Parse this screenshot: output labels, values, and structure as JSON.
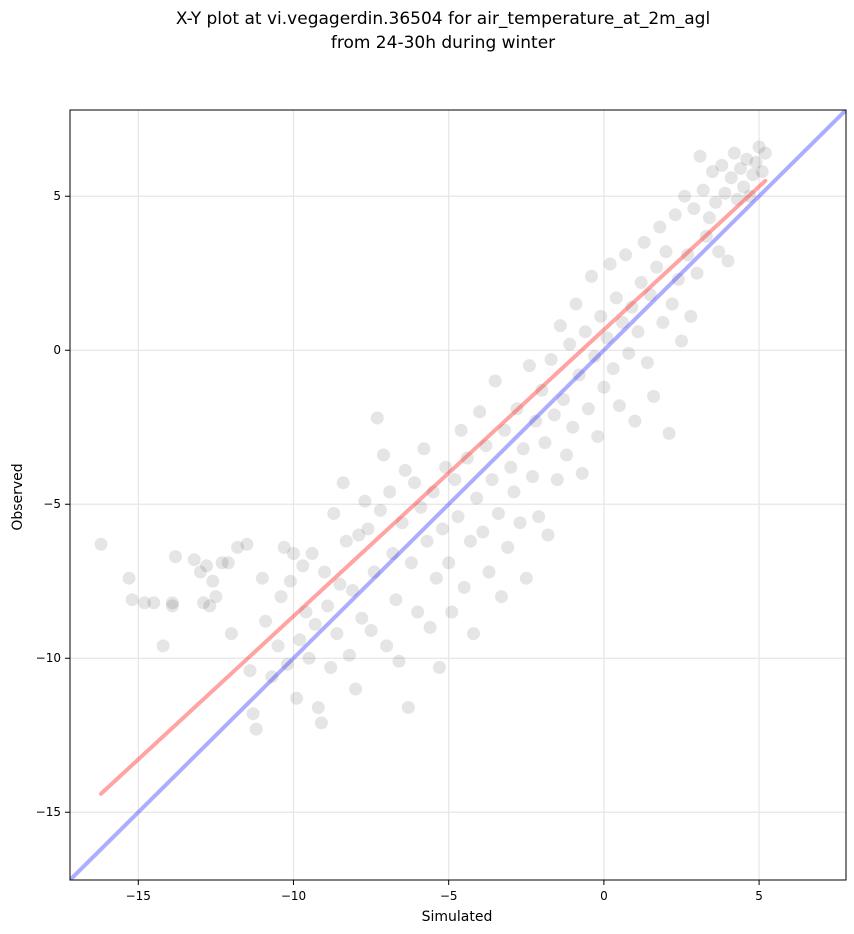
{
  "chart_data": {
    "type": "scatter",
    "title": "X-Y plot at vi.vegagerdin.36504 for air_temperature_at_2m_agl",
    "subtitle": "from 24-30h during winter",
    "xlabel": "Simulated",
    "ylabel": "Observed",
    "xlim": [
      -17.2,
      7.8
    ],
    "ylim": [
      -17.2,
      7.8
    ],
    "xticks": [
      -15,
      -10,
      -5,
      0,
      5
    ],
    "yticks": [
      -15,
      -10,
      -5,
      0,
      5
    ],
    "xtick_labels": [
      "−15",
      "−10",
      "−5",
      "0",
      "5"
    ],
    "ytick_labels": [
      "−15",
      "−10",
      "−5",
      "0",
      "5"
    ],
    "grid": true,
    "point_color": "#000000",
    "point_alpha": 0.1,
    "regression_line": {
      "color": "#ff3333",
      "alpha": 0.45,
      "x": [
        -16.2,
        5.2
      ],
      "y": [
        -14.4,
        5.5
      ]
    },
    "identity_line": {
      "color": "#3333ff",
      "alpha": 0.4,
      "x": [
        -17.2,
        7.8
      ],
      "y": [
        -17.2,
        7.8
      ]
    },
    "points": [
      [
        -16.2,
        -6.3
      ],
      [
        -15.3,
        -7.4
      ],
      [
        -15.2,
        -8.1
      ],
      [
        -14.8,
        -8.2
      ],
      [
        -14.5,
        -8.2
      ],
      [
        -14.2,
        -9.6
      ],
      [
        -13.9,
        -8.2
      ],
      [
        -13.9,
        -8.3
      ],
      [
        -13.8,
        -6.7
      ],
      [
        -13.2,
        -6.8
      ],
      [
        -13.0,
        -7.2
      ],
      [
        -12.9,
        -8.2
      ],
      [
        -12.8,
        -7.0
      ],
      [
        -12.7,
        -8.3
      ],
      [
        -12.6,
        -7.5
      ],
      [
        -12.5,
        -8.0
      ],
      [
        -12.3,
        -6.9
      ],
      [
        -12.1,
        -6.9
      ],
      [
        -12.0,
        -9.2
      ],
      [
        -11.8,
        -6.4
      ],
      [
        -11.5,
        -6.3
      ],
      [
        -11.4,
        -10.4
      ],
      [
        -11.3,
        -11.8
      ],
      [
        -11.2,
        -12.3
      ],
      [
        -11.0,
        -7.4
      ],
      [
        -10.9,
        -8.8
      ],
      [
        -10.7,
        -10.6
      ],
      [
        -10.5,
        -9.6
      ],
      [
        -10.4,
        -8.0
      ],
      [
        -10.3,
        -6.4
      ],
      [
        -10.2,
        -10.2
      ],
      [
        -10.1,
        -7.5
      ],
      [
        -10.0,
        -6.6
      ],
      [
        -9.9,
        -11.3
      ],
      [
        -9.8,
        -9.4
      ],
      [
        -9.7,
        -7.0
      ],
      [
        -9.6,
        -8.5
      ],
      [
        -9.5,
        -10.0
      ],
      [
        -9.4,
        -6.6
      ],
      [
        -9.3,
        -8.9
      ],
      [
        -9.2,
        -11.6
      ],
      [
        -9.1,
        -12.1
      ],
      [
        -9.0,
        -7.2
      ],
      [
        -8.9,
        -8.3
      ],
      [
        -8.8,
        -10.3
      ],
      [
        -8.7,
        -5.3
      ],
      [
        -8.6,
        -9.2
      ],
      [
        -8.5,
        -7.6
      ],
      [
        -8.4,
        -4.3
      ],
      [
        -8.3,
        -6.2
      ],
      [
        -8.2,
        -9.9
      ],
      [
        -8.1,
        -7.8
      ],
      [
        -8.0,
        -11.0
      ],
      [
        -7.9,
        -6.0
      ],
      [
        -7.8,
        -8.7
      ],
      [
        -7.7,
        -4.9
      ],
      [
        -7.6,
        -5.8
      ],
      [
        -7.5,
        -9.1
      ],
      [
        -7.4,
        -7.2
      ],
      [
        -7.3,
        -2.2
      ],
      [
        -7.2,
        -5.2
      ],
      [
        -7.1,
        -3.4
      ],
      [
        -7.0,
        -9.6
      ],
      [
        -6.9,
        -4.6
      ],
      [
        -6.8,
        -6.6
      ],
      [
        -6.7,
        -8.1
      ],
      [
        -6.6,
        -10.1
      ],
      [
        -6.5,
        -5.6
      ],
      [
        -6.4,
        -3.9
      ],
      [
        -6.3,
        -11.6
      ],
      [
        -6.2,
        -6.9
      ],
      [
        -6.1,
        -4.3
      ],
      [
        -6.0,
        -8.5
      ],
      [
        -5.9,
        -5.1
      ],
      [
        -5.8,
        -3.2
      ],
      [
        -5.7,
        -6.2
      ],
      [
        -5.6,
        -9.0
      ],
      [
        -5.5,
        -4.6
      ],
      [
        -5.4,
        -7.4
      ],
      [
        -5.3,
        -10.3
      ],
      [
        -5.2,
        -5.8
      ],
      [
        -5.1,
        -3.8
      ],
      [
        -5.0,
        -6.9
      ],
      [
        -4.9,
        -8.5
      ],
      [
        -4.8,
        -4.2
      ],
      [
        -4.7,
        -5.4
      ],
      [
        -4.6,
        -2.6
      ],
      [
        -4.5,
        -7.7
      ],
      [
        -4.4,
        -3.5
      ],
      [
        -4.3,
        -6.2
      ],
      [
        -4.2,
        -9.2
      ],
      [
        -4.1,
        -4.8
      ],
      [
        -4.0,
        -2.0
      ],
      [
        -3.9,
        -5.9
      ],
      [
        -3.8,
        -3.1
      ],
      [
        -3.7,
        -7.2
      ],
      [
        -3.6,
        -4.2
      ],
      [
        -3.5,
        -1.0
      ],
      [
        -3.4,
        -5.3
      ],
      [
        -3.3,
        -8.0
      ],
      [
        -3.2,
        -2.6
      ],
      [
        -3.1,
        -6.4
      ],
      [
        -3.0,
        -3.8
      ],
      [
        -2.9,
        -4.6
      ],
      [
        -2.8,
        -1.9
      ],
      [
        -2.7,
        -5.6
      ],
      [
        -2.6,
        -3.2
      ],
      [
        -2.5,
        -7.4
      ],
      [
        -2.4,
        -0.5
      ],
      [
        -2.3,
        -4.1
      ],
      [
        -2.2,
        -2.3
      ],
      [
        -2.1,
        -5.4
      ],
      [
        -2.0,
        -1.3
      ],
      [
        -1.9,
        -3.0
      ],
      [
        -1.8,
        -6.0
      ],
      [
        -1.7,
        -0.3
      ],
      [
        -1.6,
        -2.1
      ],
      [
        -1.5,
        -4.2
      ],
      [
        -1.4,
        0.8
      ],
      [
        -1.3,
        -1.6
      ],
      [
        -1.2,
        -3.4
      ],
      [
        -1.1,
        0.2
      ],
      [
        -1.0,
        -2.5
      ],
      [
        -0.9,
        1.5
      ],
      [
        -0.8,
        -0.8
      ],
      [
        -0.7,
        -4.0
      ],
      [
        -0.6,
        0.6
      ],
      [
        -0.5,
        -1.9
      ],
      [
        -0.4,
        2.4
      ],
      [
        -0.3,
        -0.2
      ],
      [
        -0.2,
        -2.8
      ],
      [
        -0.1,
        1.1
      ],
      [
        0.0,
        -1.2
      ],
      [
        0.1,
        0.4
      ],
      [
        0.2,
        2.8
      ],
      [
        0.3,
        -0.6
      ],
      [
        0.4,
        1.7
      ],
      [
        0.5,
        -1.8
      ],
      [
        0.6,
        0.9
      ],
      [
        0.7,
        3.1
      ],
      [
        0.8,
        -0.1
      ],
      [
        0.9,
        1.4
      ],
      [
        1.0,
        -2.3
      ],
      [
        1.1,
        0.6
      ],
      [
        1.2,
        2.2
      ],
      [
        1.3,
        3.5
      ],
      [
        1.4,
        -0.4
      ],
      [
        1.5,
        1.8
      ],
      [
        1.6,
        -1.5
      ],
      [
        1.7,
        2.7
      ],
      [
        1.8,
        4.0
      ],
      [
        1.9,
        0.9
      ],
      [
        2.0,
        3.2
      ],
      [
        2.1,
        -2.7
      ],
      [
        2.2,
        1.5
      ],
      [
        2.3,
        4.4
      ],
      [
        2.4,
        2.3
      ],
      [
        2.5,
        0.3
      ],
      [
        2.6,
        5.0
      ],
      [
        2.7,
        3.1
      ],
      [
        2.8,
        1.1
      ],
      [
        2.9,
        4.6
      ],
      [
        3.0,
        2.5
      ],
      [
        3.1,
        6.3
      ],
      [
        3.2,
        5.2
      ],
      [
        3.3,
        3.7
      ],
      [
        3.4,
        4.3
      ],
      [
        3.5,
        5.8
      ],
      [
        3.6,
        4.8
      ],
      [
        3.7,
        3.2
      ],
      [
        3.8,
        6.0
      ],
      [
        3.9,
        5.1
      ],
      [
        4.0,
        2.9
      ],
      [
        4.1,
        5.6
      ],
      [
        4.2,
        6.4
      ],
      [
        4.3,
        4.9
      ],
      [
        4.4,
        5.9
      ],
      [
        4.5,
        5.3
      ],
      [
        4.6,
        6.2
      ],
      [
        4.7,
        5.0
      ],
      [
        4.8,
        5.7
      ],
      [
        4.9,
        6.1
      ],
      [
        5.0,
        6.6
      ],
      [
        5.1,
        5.8
      ],
      [
        5.2,
        6.4
      ]
    ]
  }
}
